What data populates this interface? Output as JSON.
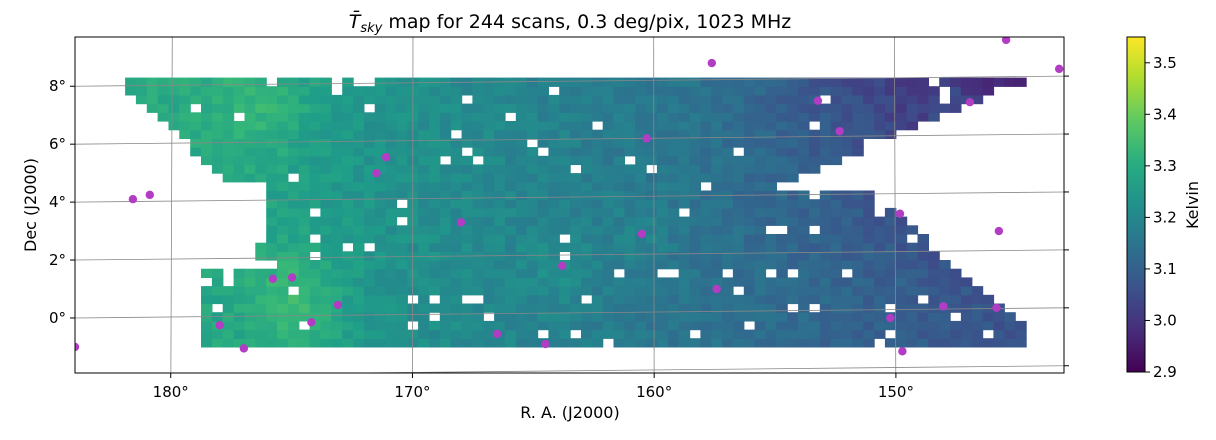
{
  "chart_data": {
    "type": "heatmap",
    "title_main": "T̄",
    "title_sub": "sky",
    "title_rest": " map for 244 scans, 0.3 deg/pix, 1023 MHz",
    "xlabel": "R. A. (J2000)",
    "ylabel": "Dec (J2000)",
    "x_ticks": [
      "180°",
      "170°",
      "160°",
      "150°"
    ],
    "x_tick_values": [
      180,
      170,
      160,
      150
    ],
    "y_ticks": [
      "0°",
      "2°",
      "4°",
      "6°",
      "8°"
    ],
    "y_tick_values": [
      0,
      2,
      4,
      6,
      8
    ],
    "xlim": [
      184,
      143
    ],
    "ylim": [
      -1.9,
      9.7
    ],
    "colorbar": {
      "label": "Kelvin",
      "ticks": [
        "2.9",
        "3.0",
        "3.1",
        "3.2",
        "3.3",
        "3.4",
        "3.5"
      ],
      "tick_values": [
        2.9,
        3.0,
        3.1,
        3.2,
        3.3,
        3.4,
        3.5
      ],
      "range": [
        2.9,
        3.55
      ],
      "colormap": "viridis"
    },
    "grid": true,
    "sources_color": "#b23cc4",
    "sources": [
      [
        184.0,
        -1.0
      ],
      [
        181.6,
        4.1
      ],
      [
        180.9,
        4.25
      ],
      [
        178.0,
        -0.25
      ],
      [
        177.0,
        -1.05
      ],
      [
        175.8,
        1.35
      ],
      [
        175.0,
        1.4
      ],
      [
        174.2,
        -0.15
      ],
      [
        173.1,
        0.45
      ],
      [
        171.5,
        5.0
      ],
      [
        171.1,
        5.55
      ],
      [
        168.0,
        3.3
      ],
      [
        166.5,
        -0.55
      ],
      [
        164.5,
        -0.9
      ],
      [
        163.8,
        1.8
      ],
      [
        160.5,
        2.9
      ],
      [
        160.3,
        6.2
      ],
      [
        157.6,
        8.8
      ],
      [
        157.4,
        1.0
      ],
      [
        153.2,
        7.5
      ],
      [
        152.3,
        6.45
      ],
      [
        150.2,
        0.0
      ],
      [
        149.8,
        3.6
      ],
      [
        149.7,
        -1.15
      ],
      [
        148.0,
        0.4
      ],
      [
        146.9,
        7.45
      ],
      [
        145.7,
        3.0
      ],
      [
        145.8,
        0.35
      ],
      [
        145.4,
        9.6
      ],
      [
        143.2,
        8.6
      ]
    ]
  }
}
